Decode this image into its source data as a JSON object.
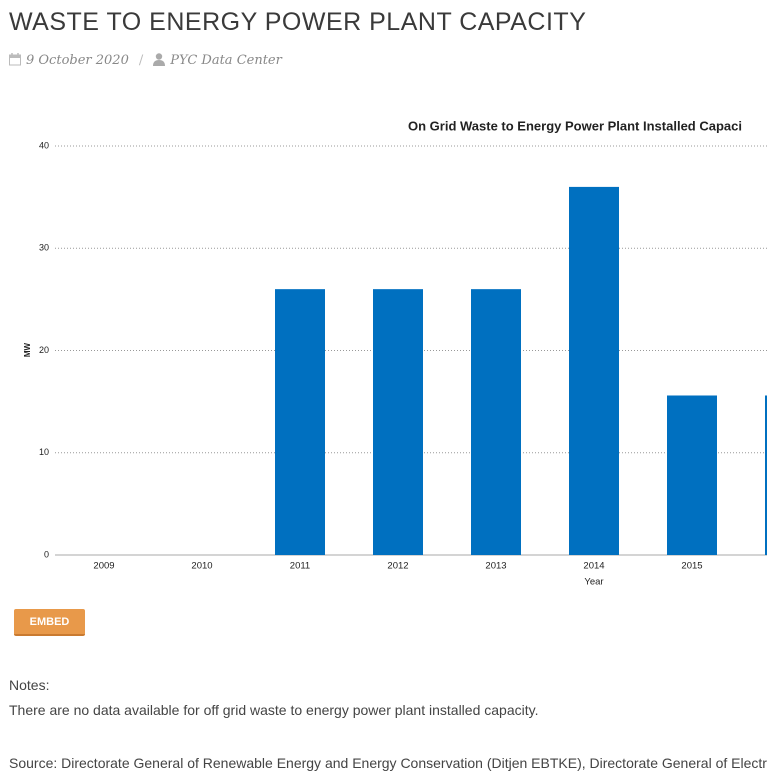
{
  "header": {
    "title": "WASTE TO ENERGY POWER PLANT CAPACITY",
    "date": "9 October 2020",
    "author": "PYC Data Center"
  },
  "chart_data": {
    "type": "bar",
    "title": "On Grid Waste to Energy Power Plant Installed Capaci",
    "x_label": "Year",
    "y_label": "MW",
    "categories": [
      "2009",
      "2010",
      "2011",
      "2012",
      "2013",
      "2014",
      "2015",
      null
    ],
    "values": [
      0,
      0,
      26,
      26,
      26,
      36,
      15.6,
      15.6
    ],
    "color": "#0070c0",
    "ylim": [
      0,
      40
    ],
    "yticks": [
      0,
      10,
      20,
      30,
      40
    ],
    "grid": true
  },
  "embed_button": "EMBED",
  "notes": {
    "heading": "Notes:",
    "text": "There are no data available for off grid waste to energy power plant installed capacity."
  },
  "source": "Source: Directorate General of Renewable Energy and Energy Conservation (Ditjen EBTKE), Directorate General of Electricit"
}
